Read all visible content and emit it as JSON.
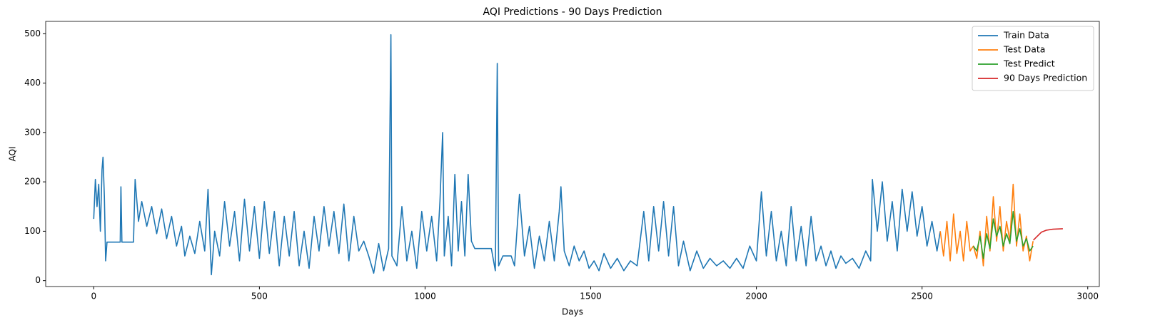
{
  "chart_data": {
    "type": "line",
    "title": "AQI Predictions - 90 Days Prediction",
    "x_label": "Days",
    "y_label": "AQI",
    "xlim": [
      -145,
      3035
    ],
    "ylim": [
      -12,
      525
    ],
    "xticks": [
      0,
      500,
      1000,
      1500,
      2000,
      2500,
      3000
    ],
    "yticks": [
      0,
      100,
      200,
      300,
      400,
      500
    ],
    "legend": "upper right",
    "series": [
      {
        "name": "Train Data",
        "color": "#1f77b4",
        "x": [
          0,
          5,
          10,
          15,
          20,
          25,
          28,
          32,
          36,
          40,
          80,
          82,
          85,
          120,
          125,
          135,
          145,
          160,
          175,
          190,
          205,
          220,
          235,
          250,
          265,
          275,
          290,
          305,
          320,
          335,
          345,
          355,
          365,
          380,
          395,
          410,
          425,
          440,
          455,
          470,
          485,
          500,
          515,
          530,
          545,
          560,
          575,
          590,
          605,
          620,
          635,
          650,
          665,
          680,
          695,
          710,
          725,
          740,
          755,
          770,
          785,
          800,
          815,
          830,
          845,
          860,
          875,
          890,
          897,
          900,
          915,
          930,
          945,
          960,
          975,
          990,
          1005,
          1020,
          1035,
          1045,
          1053,
          1058,
          1070,
          1080,
          1090,
          1100,
          1110,
          1120,
          1130,
          1140,
          1150,
          1200,
          1212,
          1218,
          1222,
          1235,
          1260,
          1270,
          1285,
          1300,
          1315,
          1330,
          1345,
          1360,
          1375,
          1390,
          1405,
          1410,
          1420,
          1435,
          1450,
          1465,
          1480,
          1495,
          1510,
          1525,
          1540,
          1560,
          1580,
          1600,
          1620,
          1640,
          1660,
          1675,
          1690,
          1705,
          1720,
          1735,
          1750,
          1765,
          1780,
          1800,
          1820,
          1840,
          1860,
          1880,
          1900,
          1920,
          1940,
          1960,
          1980,
          2000,
          2015,
          2030,
          2045,
          2060,
          2075,
          2090,
          2105,
          2120,
          2135,
          2150,
          2165,
          2180,
          2195,
          2210,
          2225,
          2240,
          2255,
          2270,
          2290,
          2310,
          2330,
          2345,
          2350,
          2365,
          2380,
          2395,
          2410,
          2425,
          2440,
          2455,
          2470,
          2485,
          2500,
          2515,
          2530,
          2545,
          2555
        ],
        "values": [
          125,
          205,
          150,
          195,
          100,
          225,
          250,
          170,
          40,
          78,
          78,
          190,
          78,
          78,
          205,
          120,
          160,
          110,
          150,
          95,
          145,
          85,
          130,
          70,
          110,
          50,
          90,
          55,
          120,
          60,
          185,
          12,
          100,
          50,
          160,
          70,
          140,
          40,
          165,
          60,
          150,
          45,
          160,
          55,
          140,
          30,
          130,
          50,
          140,
          30,
          100,
          25,
          130,
          60,
          150,
          70,
          140,
          55,
          155,
          40,
          130,
          60,
          80,
          50,
          15,
          75,
          20,
          65,
          498,
          50,
          30,
          150,
          40,
          100,
          25,
          140,
          60,
          130,
          40,
          160,
          300,
          50,
          130,
          30,
          215,
          60,
          160,
          50,
          215,
          80,
          65,
          65,
          20,
          440,
          30,
          50,
          50,
          30,
          175,
          50,
          110,
          25,
          90,
          40,
          120,
          40,
          140,
          190,
          60,
          30,
          70,
          40,
          60,
          25,
          40,
          20,
          55,
          25,
          45,
          20,
          40,
          30,
          140,
          40,
          150,
          60,
          160,
          50,
          150,
          30,
          80,
          20,
          60,
          25,
          45,
          30,
          40,
          25,
          45,
          25,
          70,
          40,
          180,
          50,
          140,
          40,
          100,
          30,
          150,
          40,
          110,
          30,
          130,
          40,
          70,
          30,
          60,
          25,
          50,
          35,
          45,
          25,
          60,
          40,
          205,
          100,
          200,
          80,
          160,
          60,
          185,
          100,
          180,
          90,
          150,
          70,
          120,
          60,
          100
        ]
      },
      {
        "name": "Test Data",
        "color": "#ff7f0e",
        "x": [
          2555,
          2565,
          2575,
          2585,
          2595,
          2605,
          2615,
          2625,
          2635,
          2645,
          2655,
          2665,
          2675,
          2685,
          2695,
          2705,
          2715,
          2725,
          2735,
          2745,
          2755,
          2765,
          2775,
          2785,
          2795,
          2805,
          2815,
          2825,
          2835
        ],
        "values": [
          100,
          50,
          120,
          40,
          135,
          55,
          100,
          40,
          120,
          60,
          70,
          45,
          100,
          30,
          130,
          60,
          170,
          80,
          150,
          60,
          120,
          80,
          195,
          70,
          135,
          60,
          90,
          40,
          80
        ]
      },
      {
        "name": "Test Predict",
        "color": "#2ca02c",
        "x": [
          2655,
          2665,
          2675,
          2685,
          2695,
          2705,
          2715,
          2725,
          2735,
          2745,
          2755,
          2765,
          2775,
          2785,
          2795,
          2805,
          2815,
          2825,
          2835
        ],
        "values": [
          70,
          60,
          90,
          45,
          95,
          65,
          125,
          90,
          110,
          70,
          95,
          75,
          140,
          80,
          105,
          70,
          85,
          60,
          70
        ]
      },
      {
        "name": "90 Days Prediction",
        "color": "#d62728",
        "x": [
          2836,
          2845,
          2860,
          2875,
          2895,
          2925
        ],
        "values": [
          82,
          88,
          98,
          102,
          104,
          105
        ]
      }
    ]
  }
}
